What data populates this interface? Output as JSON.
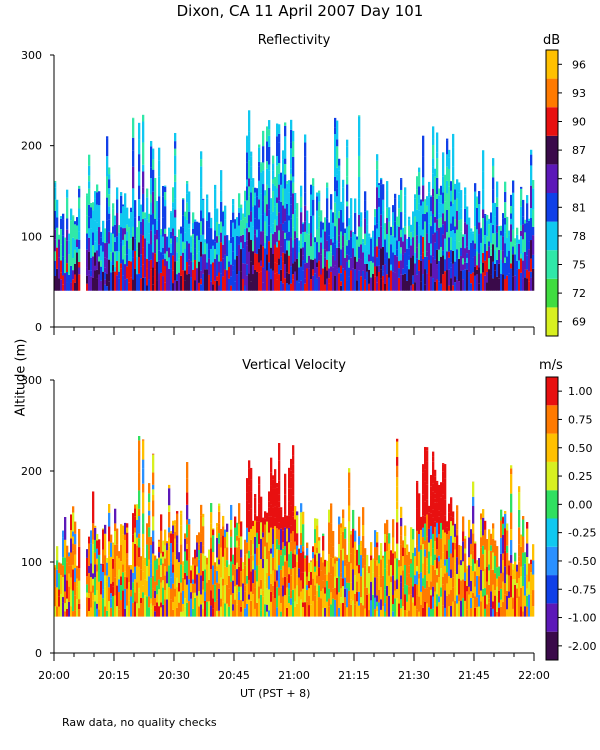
{
  "figure": {
    "title": "Dixon, CA 11 April 2007  Day 101",
    "footer": "Raw data, no quality checks",
    "ylabel": "Altitude (m)"
  },
  "chart_data": [
    {
      "type": "heatmap",
      "title": "Reflectivity",
      "xlabel": "",
      "ylabel": "Altitude (m)",
      "x_range": [
        "20:00",
        "22:00"
      ],
      "ylim": [
        0,
        300
      ],
      "y_ticks": [
        0,
        100,
        200,
        300
      ],
      "colorbar": {
        "unit": "dB",
        "ticks": [
          "69",
          "72",
          "75",
          "78",
          "81",
          "84",
          "87",
          "90",
          "93",
          "96"
        ],
        "colors": [
          "#d8f020",
          "#40dd40",
          "#30e8a8",
          "#10c8f0",
          "#1040e8",
          "#5c18b8",
          "#3a0a4a",
          "#e81010",
          "#ff7a00",
          "#ffc000"
        ]
      }
    },
    {
      "type": "heatmap",
      "title": "Vertical Velocity",
      "xlabel": "UT  (PST + 8)",
      "ylabel": "Altitude (m)",
      "x_range": [
        "20:00",
        "22:00"
      ],
      "ylim": [
        0,
        300
      ],
      "y_ticks": [
        0,
        100,
        200,
        300
      ],
      "x_ticks": [
        "20:00",
        "20:15",
        "20:30",
        "20:45",
        "21:00",
        "21:15",
        "21:30",
        "21:45",
        "22:00"
      ],
      "colorbar": {
        "unit": "m/s",
        "ticks": [
          "-2.00",
          "-1.00",
          "-0.75",
          "-0.50",
          "-0.25",
          "0.00",
          "0.25",
          "0.50",
          "0.75",
          "1.00"
        ],
        "colors": [
          "#3a0a4a",
          "#5c18b8",
          "#1040e8",
          "#2a90ff",
          "#10c8f0",
          "#30e060",
          "#d8f020",
          "#ffc000",
          "#ff7a00",
          "#e81010"
        ]
      }
    }
  ]
}
